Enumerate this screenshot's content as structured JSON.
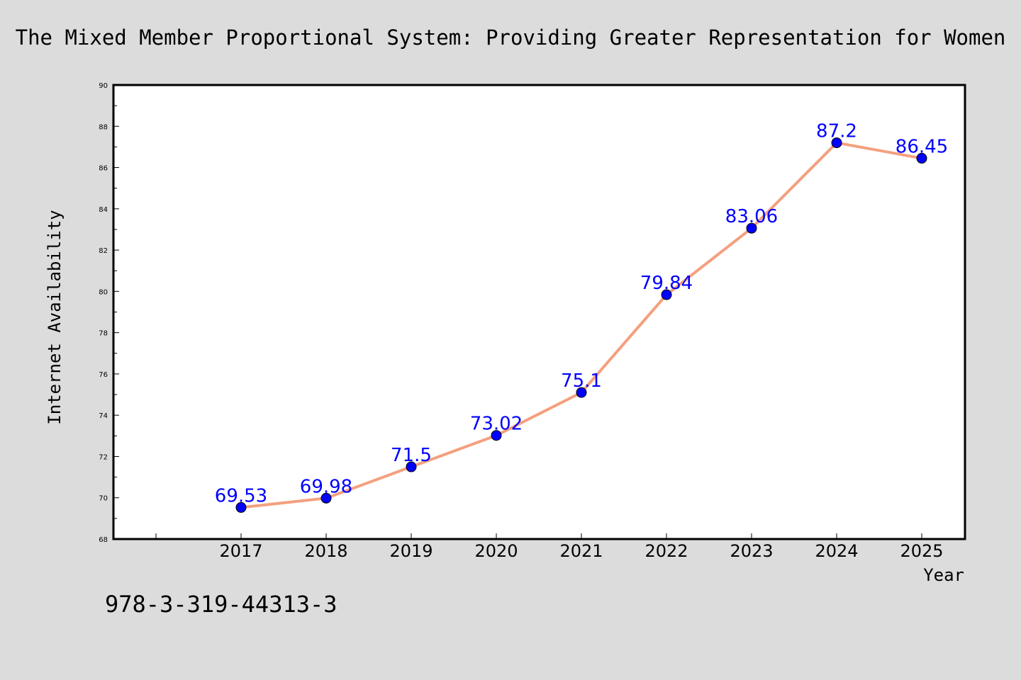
{
  "colors": {
    "background": "#dcdcdc",
    "plot_background": "#ffffff",
    "line": "#f4a07e",
    "marker": "#0000ff",
    "data_label": "#0000ff"
  },
  "footnote": "978-3-319-44313-3",
  "chart_data": {
    "type": "line",
    "title": "The Mixed Member Proportional System: Providing Greater Representation for Women",
    "xlabel": "Year",
    "ylabel": "Internet Availability",
    "categories": [
      "2017",
      "2018",
      "2019",
      "2020",
      "2021",
      "2022",
      "2023",
      "2024",
      "2025"
    ],
    "series": [
      {
        "values": [
          69.53,
          69.98,
          71.5,
          73.02,
          75.1,
          79.84,
          83.06,
          87.2,
          86.45
        ],
        "labels": [
          "69.53",
          "69.98",
          "71.5",
          "73.02",
          "75.1",
          "79.84",
          "83.06",
          "87.2",
          "86.45"
        ]
      }
    ],
    "ylim": [
      68,
      90
    ],
    "yticks": [
      "68",
      "70",
      "72",
      "74",
      "76",
      "78",
      "80",
      "82",
      "84",
      "86",
      "88",
      "90"
    ],
    "grid": false,
    "legend": "none"
  }
}
